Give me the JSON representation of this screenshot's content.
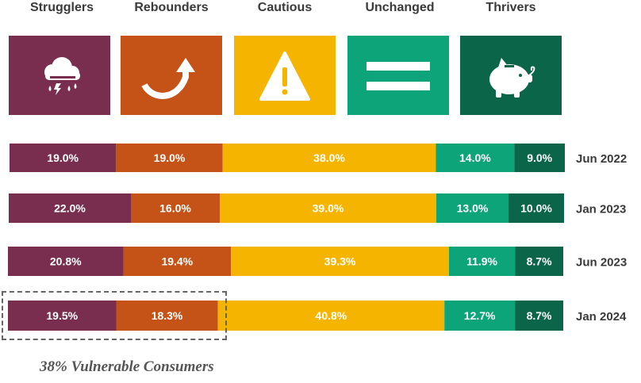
{
  "segments": [
    {
      "label": "Strugglers",
      "color": "#7a2e4f",
      "icon": "storm-cloud-icon"
    },
    {
      "label": "Rebounders",
      "color": "#c55216",
      "icon": "rebound-arrow-icon"
    },
    {
      "label": "Cautious",
      "color": "#f5b400",
      "icon": "warning-icon"
    },
    {
      "label": "Unchanged",
      "color": "#0ea47a",
      "icon": "equals-icon"
    },
    {
      "label": "Thrivers",
      "color": "#0b6548",
      "icon": "piggy-bank-icon"
    }
  ],
  "chart_data": {
    "type": "bar",
    "orientation": "horizontal",
    "stacked": true,
    "normalized": true,
    "categories": [
      "Jun 2022",
      "Jan 2023",
      "Jun 2023",
      "Jan 2024"
    ],
    "series": [
      {
        "name": "Strugglers",
        "values": [
          19.0,
          22.0,
          20.8,
          19.5
        ],
        "labels": [
          "19.0%",
          "22.0%",
          "20.8%",
          "19.5%"
        ]
      },
      {
        "name": "Rebounders",
        "values": [
          19.0,
          16.0,
          19.4,
          18.3
        ],
        "labels": [
          "19.0%",
          "16.0%",
          "19.4%",
          "18.3%"
        ]
      },
      {
        "name": "Cautious",
        "values": [
          38.0,
          39.0,
          39.3,
          40.8
        ],
        "labels": [
          "38.0%",
          "39.0%",
          "39.3%",
          "40.8%"
        ]
      },
      {
        "name": "Unchanged",
        "values": [
          14.0,
          13.0,
          11.9,
          12.7
        ],
        "labels": [
          "14.0%",
          "13.0%",
          "11.9%",
          "12.7%"
        ]
      },
      {
        "name": "Thrivers",
        "values": [
          9.0,
          10.0,
          8.7,
          8.7
        ],
        "labels": [
          "9.0%",
          "10.0%",
          "8.7%",
          "8.7%"
        ]
      }
    ],
    "highlight": {
      "row": "Jan 2024",
      "series": [
        "Strugglers",
        "Rebounders"
      ]
    }
  },
  "footnote": "38% Vulnerable Consumers"
}
